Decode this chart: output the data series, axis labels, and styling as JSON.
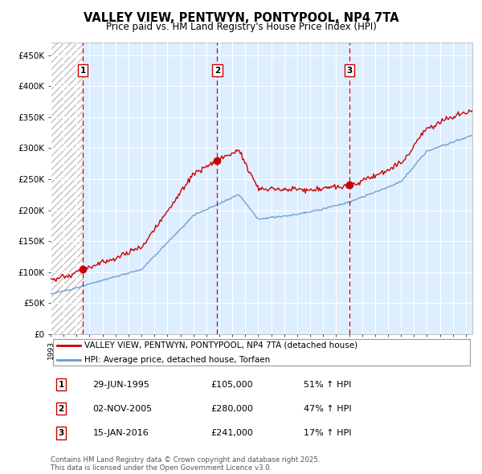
{
  "title": "VALLEY VIEW, PENTWYN, PONTYPOOL, NP4 7TA",
  "subtitle": "Price paid vs. HM Land Registry's House Price Index (HPI)",
  "legend_property": "VALLEY VIEW, PENTWYN, PONTYPOOL, NP4 7TA (detached house)",
  "legend_hpi": "HPI: Average price, detached house, Torfaen",
  "ylabel_ticks": [
    "£0",
    "£50K",
    "£100K",
    "£150K",
    "£200K",
    "£250K",
    "£300K",
    "£350K",
    "£400K",
    "£450K"
  ],
  "ytick_values": [
    0,
    50000,
    100000,
    150000,
    200000,
    250000,
    300000,
    350000,
    400000,
    450000
  ],
  "ylim": [
    0,
    470000
  ],
  "xlim_left": 1993,
  "xlim_right": 2025.5,
  "sale1_date": 1995.49,
  "sale1_price": 105000,
  "sale2_date": 2005.84,
  "sale2_price": 280000,
  "sale3_date": 2016.04,
  "sale3_price": 241000,
  "property_color": "#cc0000",
  "hpi_color": "#6699cc",
  "vline_color": "#dd0000",
  "plot_bg": "#ddeeff",
  "hatch_bg": "#ffffff",
  "copyright": "Contains HM Land Registry data © Crown copyright and database right 2025.\nThis data is licensed under the Open Government Licence v3.0.",
  "footnote_annotations": [
    {
      "num": 1,
      "date": "29-JUN-1995",
      "price": "£105,000",
      "pct": "51% ↑ HPI"
    },
    {
      "num": 2,
      "date": "02-NOV-2005",
      "price": "£280,000",
      "pct": "47% ↑ HPI"
    },
    {
      "num": 3,
      "date": "15-JAN-2016",
      "price": "£241,000",
      "pct": "17% ↑ HPI"
    }
  ]
}
